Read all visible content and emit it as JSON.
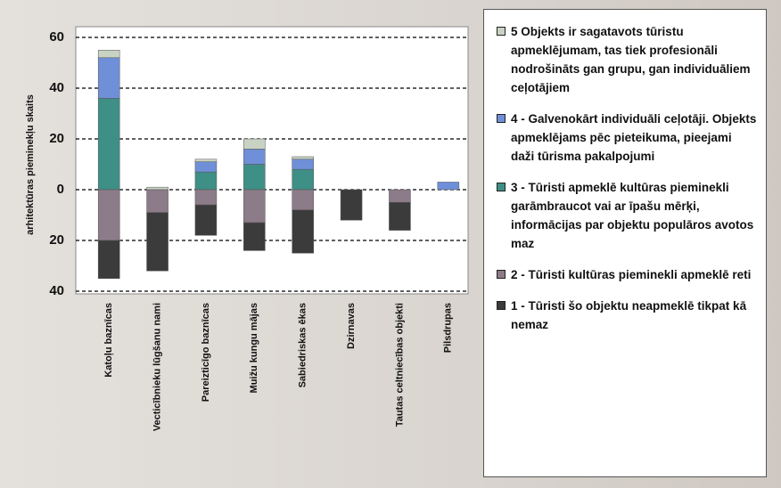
{
  "chart_data": {
    "type": "bar",
    "y_label": "arhitektūras pieminekļu skaits",
    "categories": [
      "Katoļu baznīcas",
      "Vecticībnieku lūgšanu nami",
      "Pareizticīgo baznīcas",
      "Muižu kungu mājas",
      "Sabiedriskas ēkas",
      "Dzirnavas",
      "Tautas celtniecības objekti",
      "Pilsdrupas"
    ],
    "series": [
      {
        "name": "5 Objekts ir sagatavots tūristu apmeklējumam, tas tiek profesionāli nodrošināts gan grupu, gan individuāliem ceļotājiem",
        "color": "#c9d3c4",
        "values": [
          3,
          1,
          1,
          4,
          1,
          0,
          0,
          0
        ]
      },
      {
        "name": "4 - Galvenokārt individuāli ceļotāji. Objekts apmeklējams pēc pieteikuma, pieejami daži tūrisma pakalpojumi",
        "color": "#6f8fd8",
        "values": [
          16,
          0,
          4,
          6,
          4,
          0,
          0,
          3
        ]
      },
      {
        "name": "3 - Tūristi apmeklē kultūras pieminekli garāmbraucot vai ar īpašu mērķi, informācijas par objektu populāros avotos maz",
        "color": "#3e8f86",
        "values": [
          36,
          0,
          7,
          10,
          8,
          0,
          0,
          0
        ]
      },
      {
        "name": "2 - Tūristi kultūras pieminekli apmeklē reti",
        "color": "#8c7b88",
        "values": [
          -20,
          -9,
          -6,
          -13,
          -8,
          0,
          -5,
          0
        ]
      },
      {
        "name": "1 - Tūristi šo objektu neapmeklē tikpat kā nemaz",
        "color": "#3b3b3b",
        "values": [
          -15,
          -23,
          -12,
          -11,
          -17,
          -12,
          -11,
          0
        ]
      }
    ],
    "ylim": [
      -40,
      60
    ],
    "yticks": [
      {
        "value": -40,
        "label": "40"
      },
      {
        "value": -20,
        "label": "20"
      },
      0,
      20,
      40,
      60
    ],
    "grid": true
  }
}
